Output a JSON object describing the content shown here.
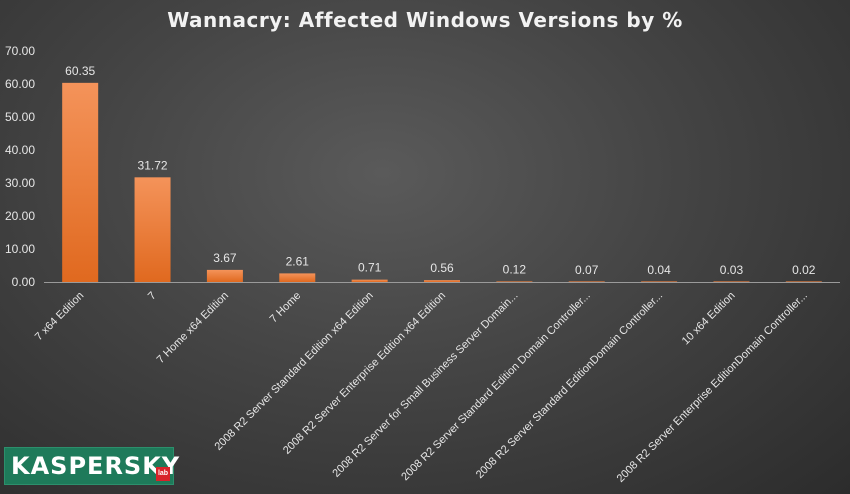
{
  "chart_data": {
    "type": "bar",
    "title": "Wannacry: Affected Windows Versions by %",
    "categories": [
      "7 x64 Edition",
      "7",
      "7 Home x64 Edition",
      "7 Home",
      "2008 R2 Server Standard Edition x64 Edition",
      "2008 R2 Server Enterprise Edition x64 Edition",
      "2008 R2 Server for Small Business Server Domain...",
      "2008 R2 Server Standard Edition Domain Controller...",
      "2008 R2 Server Standard EditionDomain Controller...",
      "10 x64 Edition",
      "2008 R2 Server Enterprise EditionDomain Controller..."
    ],
    "values": [
      60.35,
      31.72,
      3.67,
      2.61,
      0.71,
      0.56,
      0.12,
      0.07,
      0.04,
      0.03,
      0.02
    ],
    "value_labels": [
      "60.35",
      "31.72",
      "3.67",
      "2.61",
      "0.71",
      "0.56",
      "0.12",
      "0.07",
      "0.04",
      "0.03",
      "0.02"
    ],
    "yticks": [
      "0.00",
      "10.00",
      "20.00",
      "30.00",
      "40.00",
      "50.00",
      "60.00",
      "70.00"
    ],
    "ylim": [
      0,
      70
    ],
    "xlabel": "",
    "ylabel": "",
    "grid": false,
    "legend": "none",
    "bar_color": "#ed7d31"
  },
  "logo": {
    "text": "KASPERSKY",
    "badge": "lab"
  }
}
